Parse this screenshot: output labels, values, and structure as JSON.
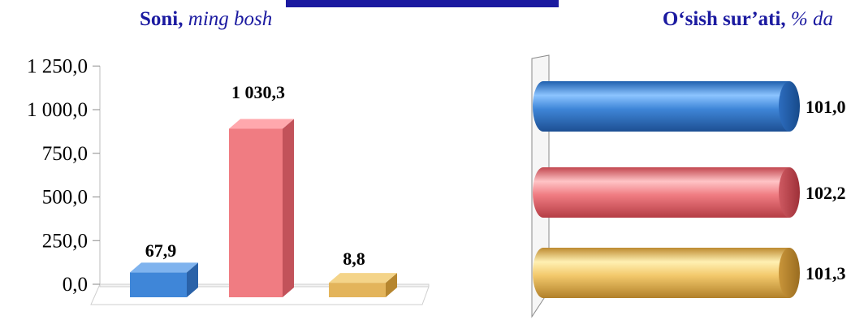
{
  "left_title": {
    "bold": "Soni,",
    "italic": "ming bosh"
  },
  "right_title": {
    "bold": "O‘sish sur’ati,",
    "italic": "% da"
  },
  "colors": {
    "title": "#1b1aa0",
    "blue": "#3f86d8",
    "red": "#f07c82",
    "gold": "#e8b864"
  },
  "chart_data": [
    {
      "type": "bar",
      "title": "Soni, ming bosh",
      "ylim": [
        0,
        1250
      ],
      "yticks": [
        "0,0",
        "250,0",
        "500,0",
        "750,0",
        "1 000,0",
        "1 250,0"
      ],
      "tick_values": [
        0,
        250,
        500,
        750,
        1000,
        1250
      ],
      "categories": [
        "",
        "",
        ""
      ],
      "values": [
        67.9,
        1030.3,
        8.8
      ],
      "data_labels": [
        "67,9",
        "1 030,3",
        "8,8"
      ],
      "bar_colors": [
        "blue",
        "red",
        "gold"
      ],
      "grid": false
    },
    {
      "type": "bar",
      "orientation": "horizontal",
      "title": "O‘sish sur’ati, % da",
      "values": [
        101.0,
        102.2,
        101.3
      ],
      "data_labels": [
        "101,0",
        "102,2",
        "101,3"
      ],
      "bar_colors": [
        "blue",
        "red",
        "gold"
      ],
      "grid": false
    }
  ]
}
